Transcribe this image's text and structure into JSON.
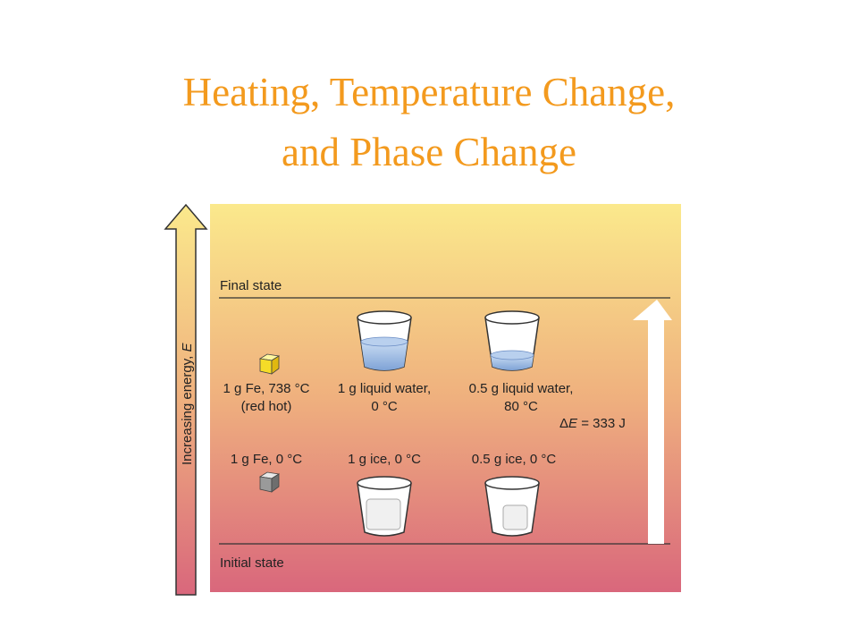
{
  "title": {
    "lines": [
      "Heating, Temperature Change,",
      "and Phase Change"
    ]
  },
  "diagram": {
    "axis_label": {
      "text": "Increasing energy, ",
      "symbol": "E"
    },
    "final_state": "Final state",
    "initial_state": "Initial state",
    "upper_labels": [
      {
        "lines": [
          "1 g Fe, 738 °C",
          "(red hot)"
        ]
      },
      {
        "lines": [
          "1 g liquid water,",
          "0 °C"
        ]
      },
      {
        "lines": [
          "0.5 g liquid water,",
          "80 °C"
        ]
      }
    ],
    "lower_labels": [
      {
        "lines": [
          "1 g Fe, 0 °C"
        ]
      },
      {
        "lines": [
          "1 g ice, 0 °C"
        ]
      },
      {
        "lines": [
          "0.5 g ice, 0 °C"
        ]
      }
    ],
    "delta_e": {
      "prefix": "Δ",
      "symbol": "E",
      "suffix": " = 333 J"
    }
  }
}
